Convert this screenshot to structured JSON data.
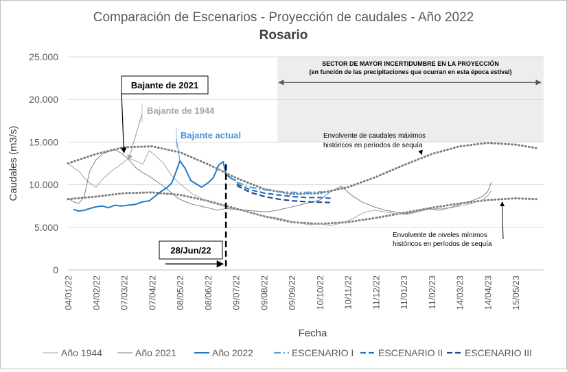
{
  "chart_data": {
    "type": "line",
    "title": "Comparación de Escenarios - Proyección de caudales - Año 2022",
    "subtitle": "Rosario",
    "xlabel": "Fecha",
    "ylabel": "Caudales (m3/s)",
    "ylim": [
      0,
      25000
    ],
    "xlim": [
      "2022-01-04",
      "2023-06-15"
    ],
    "yticks": [
      0,
      5000,
      10000,
      15000,
      20000,
      25000
    ],
    "ytick_labels": [
      "0",
      "5.000",
      "10.000",
      "15.000",
      "20.000",
      "25.000"
    ],
    "xticks": [
      "2022-01-04",
      "2022-02-04",
      "2022-03-07",
      "2022-04-07",
      "2022-05-08",
      "2022-06-08",
      "2022-07-09",
      "2022-08-09",
      "2022-09-09",
      "2022-10-10",
      "2022-11-10",
      "2022-12-11",
      "2023-01-11",
      "2023-02-11",
      "2023-03-14",
      "2023-04-14",
      "2023-05-15"
    ],
    "xtick_labels": [
      "04/01/22",
      "04/02/22",
      "07/03/22",
      "07/04/22",
      "08/05/22",
      "08/06/22",
      "09/07/22",
      "09/08/22",
      "09/09/22",
      "10/10/22",
      "10/11/22",
      "11/12/22",
      "11/01/23",
      "11/02/23",
      "14/03/23",
      "14/04/23",
      "15/05/23"
    ],
    "grid": "horizontal",
    "legend_position": "bottom",
    "colors": {
      "anio_1944": "#a6a6a6",
      "anio_2021": "#7f7f7f",
      "anio_2022": "#1f77c9",
      "escenario_1": "#5aa0e0",
      "escenario_2": "#2a6fbf",
      "escenario_3": "#1c4f8f",
      "envelope": "#7f7f7f",
      "uncertainty_band": "#ededed"
    },
    "series": [
      {
        "name": "Año 1944",
        "key": "anio_1944",
        "style": "solid",
        "x": [
          "2022-01-04",
          "2022-01-10",
          "2022-01-16",
          "2022-01-22",
          "2022-01-28",
          "2022-02-04",
          "2022-02-11",
          "2022-02-18",
          "2022-02-25",
          "2022-03-04",
          "2022-03-12",
          "2022-03-20",
          "2022-03-28",
          "2022-04-04",
          "2022-04-12",
          "2022-04-20",
          "2022-04-28",
          "2022-05-06",
          "2022-05-14",
          "2022-05-22",
          "2022-05-30",
          "2022-06-08",
          "2022-06-18",
          "2022-06-28",
          "2022-07-09",
          "2022-07-20",
          "2022-08-01",
          "2022-08-12",
          "2022-08-24",
          "2022-09-05",
          "2022-09-17",
          "2022-09-29",
          "2022-10-10",
          "2022-10-22",
          "2022-11-03",
          "2022-11-15",
          "2022-11-27",
          "2022-12-09",
          "2022-12-21",
          "2023-01-02",
          "2023-01-14",
          "2023-01-26",
          "2023-02-07",
          "2023-02-19",
          "2023-03-03",
          "2023-03-15",
          "2023-03-27",
          "2023-04-08",
          "2023-04-14",
          "2023-04-18"
        ],
        "y": [
          12500,
          12000,
          11600,
          10800,
          10200,
          9700,
          10600,
          11300,
          11900,
          12400,
          13100,
          12800,
          12400,
          14000,
          13300,
          12500,
          11200,
          10300,
          9600,
          8900,
          8500,
          8000,
          7700,
          7400,
          7100,
          6900,
          6600,
          6300,
          6100,
          5800,
          5500,
          5300,
          5400,
          5200,
          5500,
          6000,
          6700,
          7000,
          6800,
          6600,
          6500,
          6800,
          7100,
          7200,
          7300,
          7500,
          7800,
          8200,
          8700,
          9300
        ]
      },
      {
        "name": "Año 2021",
        "key": "anio_2021",
        "style": "solid",
        "x": [
          "2022-01-04",
          "2022-01-10",
          "2022-01-16",
          "2022-01-22",
          "2022-01-28",
          "2022-02-04",
          "2022-02-11",
          "2022-02-18",
          "2022-02-25",
          "2022-03-04",
          "2022-03-12",
          "2022-03-20",
          "2022-03-28",
          "2022-04-04",
          "2022-04-12",
          "2022-04-20",
          "2022-04-28",
          "2022-05-06",
          "2022-05-14",
          "2022-05-22",
          "2022-05-30",
          "2022-06-08",
          "2022-06-18",
          "2022-06-28",
          "2022-07-09",
          "2022-07-20",
          "2022-08-01",
          "2022-08-12",
          "2022-08-24",
          "2022-09-05",
          "2022-09-17",
          "2022-09-29",
          "2022-10-10",
          "2022-10-22",
          "2022-11-03",
          "2022-11-15",
          "2022-11-27",
          "2022-12-09",
          "2022-12-21",
          "2023-01-02",
          "2023-01-14",
          "2023-01-26",
          "2023-02-07",
          "2023-02-19",
          "2023-03-03",
          "2023-03-15",
          "2023-03-27",
          "2023-04-08",
          "2023-04-14",
          "2023-04-18"
        ],
        "y": [
          8400,
          8000,
          7800,
          8600,
          11600,
          12900,
          13600,
          13900,
          14100,
          13700,
          13000,
          12000,
          11400,
          11000,
          10400,
          9800,
          9100,
          8400,
          8000,
          7700,
          7500,
          7300,
          7000,
          7200,
          7100,
          7000,
          6900,
          6800,
          7000,
          7300,
          7600,
          7900,
          8200,
          9200,
          9800,
          8700,
          7900,
          7400,
          7000,
          6800,
          6600,
          6900,
          7200,
          7000,
          7300,
          7700,
          8100,
          8600,
          9200,
          10300
        ]
      },
      {
        "name": "Año 2022",
        "key": "anio_2022",
        "style": "solid",
        "x": [
          "2022-01-10",
          "2022-01-16",
          "2022-01-22",
          "2022-01-28",
          "2022-02-04",
          "2022-02-11",
          "2022-02-18",
          "2022-02-25",
          "2022-03-04",
          "2022-03-12",
          "2022-03-20",
          "2022-03-28",
          "2022-04-04",
          "2022-04-10",
          "2022-04-17",
          "2022-04-23",
          "2022-04-29",
          "2022-05-03",
          "2022-05-08",
          "2022-05-14",
          "2022-05-20",
          "2022-05-26",
          "2022-06-01",
          "2022-06-08",
          "2022-06-14",
          "2022-06-20",
          "2022-06-25",
          "2022-06-28",
          "2022-07-02",
          "2022-07-06",
          "2022-07-09"
        ],
        "y": [
          7100,
          6900,
          7000,
          7200,
          7400,
          7500,
          7300,
          7600,
          7500,
          7600,
          7700,
          8000,
          8100,
          8600,
          9200,
          9600,
          10200,
          11300,
          12800,
          11900,
          10500,
          10100,
          9700,
          10200,
          10800,
          12300,
          12700,
          11200,
          10900,
          10600,
          10500
        ]
      },
      {
        "name": "ESCENARIO I",
        "key": "escenario_1",
        "style": "dashdot",
        "x": [
          "2022-07-10",
          "2022-07-25",
          "2022-08-10",
          "2022-08-25",
          "2022-09-10",
          "2022-09-25",
          "2022-10-10",
          "2022-10-22"
        ],
        "y": [
          10300,
          9700,
          9400,
          9200,
          9100,
          9100,
          9150,
          9100
        ]
      },
      {
        "name": "ESCENARIO II",
        "key": "escenario_2",
        "style": "dash",
        "x": [
          "2022-07-10",
          "2022-07-25",
          "2022-08-10",
          "2022-08-25",
          "2022-09-10",
          "2022-09-25",
          "2022-10-10",
          "2022-10-22"
        ],
        "y": [
          10100,
          9400,
          9000,
          8800,
          8600,
          8500,
          8500,
          8400
        ]
      },
      {
        "name": "ESCENARIO III",
        "key": "escenario_3",
        "style": "dash",
        "x": [
          "2022-07-10",
          "2022-07-25",
          "2022-08-10",
          "2022-08-25",
          "2022-09-10",
          "2022-09-25",
          "2022-10-10",
          "2022-10-22"
        ],
        "y": [
          9900,
          9100,
          8600,
          8300,
          8100,
          8000,
          7950,
          7900
        ]
      }
    ],
    "envelopes": [
      {
        "label": "Envolvente de caudales máximos históricos en períodos de sequía",
        "x": [
          "2022-01-04",
          "2022-02-04",
          "2022-03-07",
          "2022-04-07",
          "2022-05-08",
          "2022-06-08",
          "2022-07-09",
          "2022-08-09",
          "2022-09-09",
          "2022-10-10",
          "2022-11-10",
          "2022-12-11",
          "2023-01-11",
          "2023-02-11",
          "2023-03-14",
          "2023-04-14",
          "2023-05-15",
          "2023-06-07"
        ],
        "y": [
          12500,
          13600,
          14400,
          14500,
          13800,
          12400,
          10800,
          9500,
          8900,
          9000,
          9700,
          10900,
          12300,
          13600,
          14500,
          14900,
          14700,
          14300
        ]
      },
      {
        "label": "Envolvente de niveles mínimos históricos en períodos de sequía",
        "x": [
          "2022-01-04",
          "2022-02-04",
          "2022-03-07",
          "2022-04-07",
          "2022-05-08",
          "2022-06-08",
          "2022-07-09",
          "2022-08-09",
          "2022-09-09",
          "2022-10-10",
          "2022-11-10",
          "2022-12-11",
          "2023-01-11",
          "2023-02-11",
          "2023-03-14",
          "2023-04-14",
          "2023-05-15",
          "2023-06-07"
        ],
        "y": [
          8300,
          8600,
          9000,
          9100,
          8800,
          8100,
          7200,
          6300,
          5600,
          5400,
          5600,
          6100,
          6700,
          7300,
          7800,
          8200,
          8400,
          8300
        ]
      }
    ],
    "uncertainty_band": {
      "x_start": "2022-08-24",
      "x_end": "2023-06-15",
      "label_1": "SECTOR DE MAYOR INCERTIDUMBRE EN LA PROYECCIÓN",
      "label_2": "(en función de las precipitaciones que ocurran en esta época estival)"
    },
    "marker_line": {
      "x": "2022-06-28",
      "label": "28/Jun/22"
    },
    "annotations": [
      {
        "key": "bajante_2021",
        "text": "Bajante de 2021",
        "target_x": "2022-03-07",
        "target_y": 13900
      },
      {
        "key": "bajante_1944",
        "text": "Bajante de 1944",
        "target_x": "2022-03-12",
        "target_y": 12900
      },
      {
        "key": "bajante_actual",
        "text": "Bajante actual",
        "target_x": "2022-05-08",
        "target_y": 12800
      },
      {
        "key": "env_max_note",
        "text_1": "Envolvente de caudales máximos",
        "text_2": "históricos en períodos de sequía",
        "target_x": "2023-01-31",
        "target_y": 13700
      },
      {
        "key": "env_min_note",
        "text_1": "Envolvente de niveles mínimos",
        "text_2": "históricos en períodos de sequía",
        "target_x": "2023-04-30",
        "target_y": 8300
      }
    ]
  }
}
